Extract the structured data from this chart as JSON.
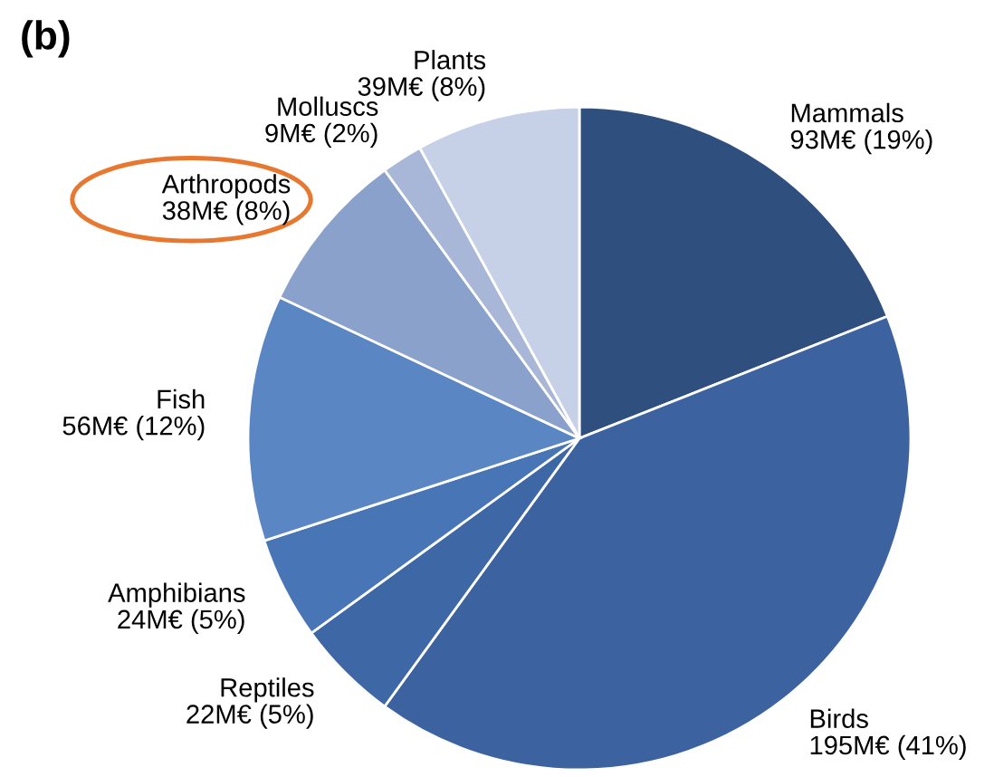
{
  "chart_data": {
    "type": "pie",
    "title": "(b)",
    "categories": [
      "Mammals",
      "Birds",
      "Reptiles",
      "Amphibians",
      "Fish",
      "Arthropods",
      "Molluscs",
      "Plants"
    ],
    "values": [
      19,
      41,
      5,
      5,
      12,
      8,
      2,
      8
    ],
    "value_labels": [
      "93M€ (19%)",
      "195M€ (41%)",
      "22M€ (5%)",
      "24M€ (5%)",
      "56M€ (12%)",
      "38M€ (8%)",
      "9M€ (2%)",
      "39M€ (8%)"
    ],
    "colors": [
      "#2f4f7f",
      "#3c63a0",
      "#3e67a6",
      "#4875b6",
      "#5a86c4",
      "#8aa1cb",
      "#a8b7d7",
      "#c6d0e6"
    ]
  }
}
